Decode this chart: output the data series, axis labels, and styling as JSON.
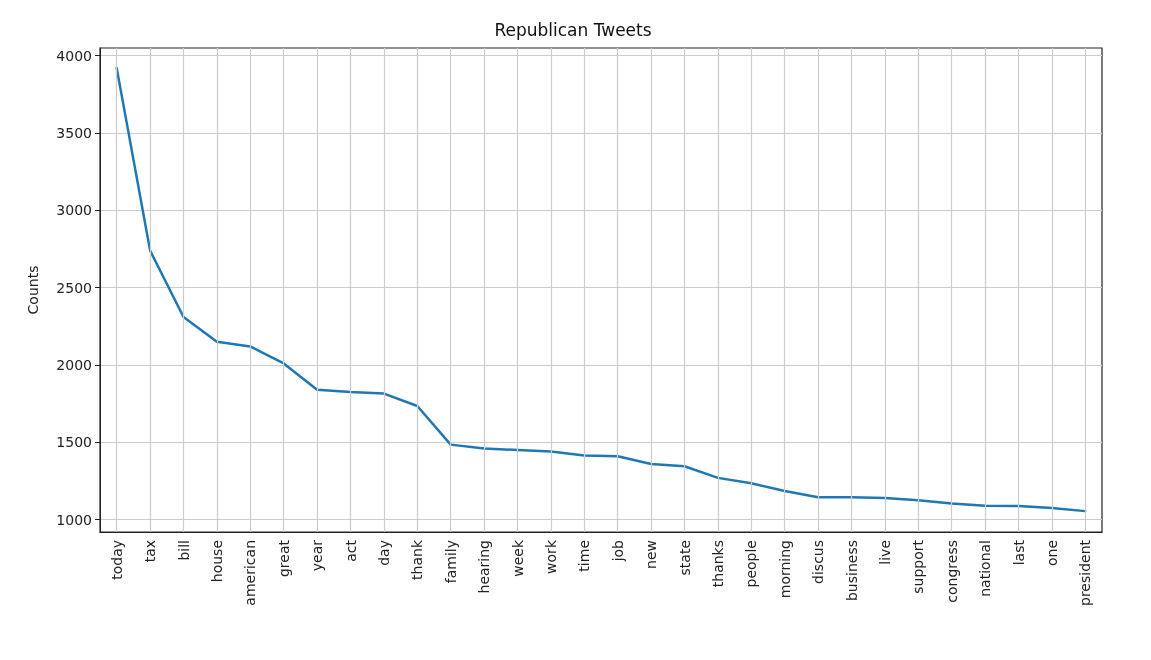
{
  "chart_data": {
    "type": "line",
    "title": "Republican Tweets",
    "ylabel": "Counts",
    "categories": [
      "today",
      "tax",
      "bill",
      "house",
      "american",
      "great",
      "year",
      "act",
      "day",
      "thank",
      "family",
      "hearing",
      "week",
      "work",
      "time",
      "job",
      "new",
      "state",
      "thanks",
      "people",
      "morning",
      "discus",
      "business",
      "live",
      "support",
      "congress",
      "national",
      "last",
      "one",
      "president"
    ],
    "series": [
      {
        "color": "#1f77b4",
        "values": [
          3920,
          2740,
          2310,
          2150,
          2120,
          2010,
          1840,
          1825,
          1815,
          1735,
          1485,
          1460,
          1450,
          1440,
          1415,
          1410,
          1360,
          1345,
          1270,
          1235,
          1185,
          1145,
          1145,
          1140,
          1125,
          1105,
          1090,
          1088,
          1075,
          1055
        ]
      }
    ],
    "ylim": [
      920,
      4050
    ],
    "yticks": [
      1000,
      1500,
      2000,
      2500,
      3000,
      3500,
      4000
    ],
    "grid": true,
    "marker": "none",
    "line_style": "solid"
  }
}
